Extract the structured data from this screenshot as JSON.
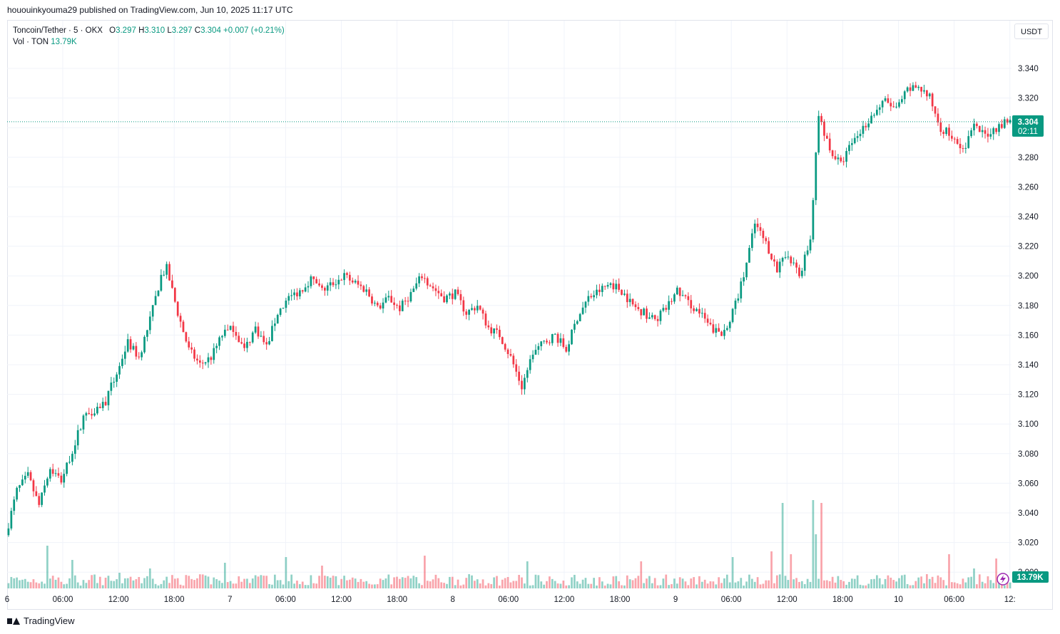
{
  "header": {
    "publish_line": "hououinkyouma29 published on TradingView.com, Jun 10, 2025 11:17 UTC"
  },
  "legend": {
    "symbol": "Toncoin/Tether · 5 · OKX",
    "open_label": "O",
    "open": "3.297",
    "high_label": "H",
    "high": "3.310",
    "low_label": "L",
    "low": "3.297",
    "close_label": "C",
    "close": "3.304",
    "change": "+0.007 (+0.21%)",
    "vol_label": "Vol · TON",
    "vol_value": "13.79K"
  },
  "currency_button": "USDT",
  "price_tag": {
    "price": "3.304",
    "countdown": "02:11"
  },
  "volume_tag": "13.79K",
  "footer": {
    "brand": "TradingView"
  },
  "colors": {
    "up": "#089981",
    "down": "#f23645",
    "grid": "#f0f3fa",
    "text": "#131722"
  },
  "chart_data": {
    "type": "candlestick",
    "ylim": [
      3.0,
      3.345
    ],
    "yticks": [
      "3.340",
      "3.320",
      "3.300",
      "3.280",
      "3.260",
      "3.240",
      "3.220",
      "3.200",
      "3.180",
      "3.160",
      "3.140",
      "3.120",
      "3.100",
      "3.080",
      "3.060",
      "3.040",
      "3.020",
      "3.000"
    ],
    "xticks": [
      "06:00",
      "12:00",
      "18:00",
      "7",
      "06:00",
      "12:00",
      "18:00",
      "8",
      "06:00",
      "12:00",
      "18:00",
      "9",
      "06:00",
      "12:00",
      "18:00",
      "10",
      "06:00",
      "12:"
    ],
    "x_edge_label": "6",
    "last_price": 3.304,
    "price_path": [
      [
        0,
        3.025
      ],
      [
        4,
        3.055
      ],
      [
        8,
        3.065
      ],
      [
        12,
        3.045
      ],
      [
        16,
        3.07
      ],
      [
        20,
        3.062
      ],
      [
        24,
        3.082
      ],
      [
        28,
        3.105
      ],
      [
        32,
        3.11
      ],
      [
        36,
        3.115
      ],
      [
        40,
        3.135
      ],
      [
        44,
        3.155
      ],
      [
        48,
        3.145
      ],
      [
        52,
        3.17
      ],
      [
        56,
        3.2
      ],
      [
        58,
        3.205
      ],
      [
        62,
        3.175
      ],
      [
        66,
        3.15
      ],
      [
        70,
        3.14
      ],
      [
        74,
        3.145
      ],
      [
        78,
        3.16
      ],
      [
        82,
        3.165
      ],
      [
        86,
        3.15
      ],
      [
        90,
        3.165
      ],
      [
        94,
        3.152
      ],
      [
        98,
        3.175
      ],
      [
        102,
        3.185
      ],
      [
        106,
        3.19
      ],
      [
        110,
        3.198
      ],
      [
        114,
        3.19
      ],
      [
        118,
        3.195
      ],
      [
        122,
        3.2
      ],
      [
        126,
        3.195
      ],
      [
        130,
        3.19
      ],
      [
        134,
        3.178
      ],
      [
        138,
        3.185
      ],
      [
        142,
        3.178
      ],
      [
        146,
        3.188
      ],
      [
        150,
        3.2
      ],
      [
        154,
        3.192
      ],
      [
        158,
        3.185
      ],
      [
        162,
        3.188
      ],
      [
        166,
        3.175
      ],
      [
        170,
        3.18
      ],
      [
        174,
        3.165
      ],
      [
        178,
        3.16
      ],
      [
        182,
        3.145
      ],
      [
        186,
        3.125
      ],
      [
        190,
        3.148
      ],
      [
        194,
        3.155
      ],
      [
        198,
        3.16
      ],
      [
        202,
        3.15
      ],
      [
        206,
        3.172
      ],
      [
        210,
        3.185
      ],
      [
        214,
        3.19
      ],
      [
        218,
        3.195
      ],
      [
        222,
        3.19
      ],
      [
        226,
        3.18
      ],
      [
        230,
        3.175
      ],
      [
        234,
        3.17
      ],
      [
        238,
        3.178
      ],
      [
        242,
        3.19
      ],
      [
        246,
        3.182
      ],
      [
        250,
        3.175
      ],
      [
        254,
        3.165
      ],
      [
        258,
        3.16
      ],
      [
        262,
        3.175
      ],
      [
        266,
        3.2
      ],
      [
        270,
        3.235
      ],
      [
        274,
        3.222
      ],
      [
        278,
        3.205
      ],
      [
        282,
        3.215
      ],
      [
        286,
        3.2
      ],
      [
        290,
        3.225
      ],
      [
        293,
        3.31
      ],
      [
        297,
        3.285
      ],
      [
        301,
        3.275
      ],
      [
        305,
        3.29
      ],
      [
        309,
        3.3
      ],
      [
        313,
        3.31
      ],
      [
        317,
        3.318
      ],
      [
        321,
        3.312
      ],
      [
        325,
        3.325
      ],
      [
        329,
        3.328
      ],
      [
        333,
        3.32
      ],
      [
        337,
        3.3
      ],
      [
        341,
        3.295
      ],
      [
        345,
        3.285
      ],
      [
        349,
        3.3
      ],
      [
        353,
        3.295
      ],
      [
        357,
        3.3
      ],
      [
        361,
        3.305
      ],
      [
        362,
        3.304
      ]
    ],
    "volume_spikes": [
      [
        14,
        0.3
      ],
      [
        23,
        0.2
      ],
      [
        40,
        0.11
      ],
      [
        51,
        0.14
      ],
      [
        78,
        0.18
      ],
      [
        100,
        0.22
      ],
      [
        113,
        0.16
      ],
      [
        150,
        0.23
      ],
      [
        187,
        0.19
      ],
      [
        228,
        0.19
      ],
      [
        261,
        0.22
      ],
      [
        275,
        0.26
      ],
      [
        279,
        0.6
      ],
      [
        282,
        0.24
      ],
      [
        290,
        0.62
      ],
      [
        291,
        0.38
      ],
      [
        293,
        0.6
      ],
      [
        339,
        0.24
      ],
      [
        348,
        0.14
      ],
      [
        356,
        0.21
      ]
    ]
  }
}
